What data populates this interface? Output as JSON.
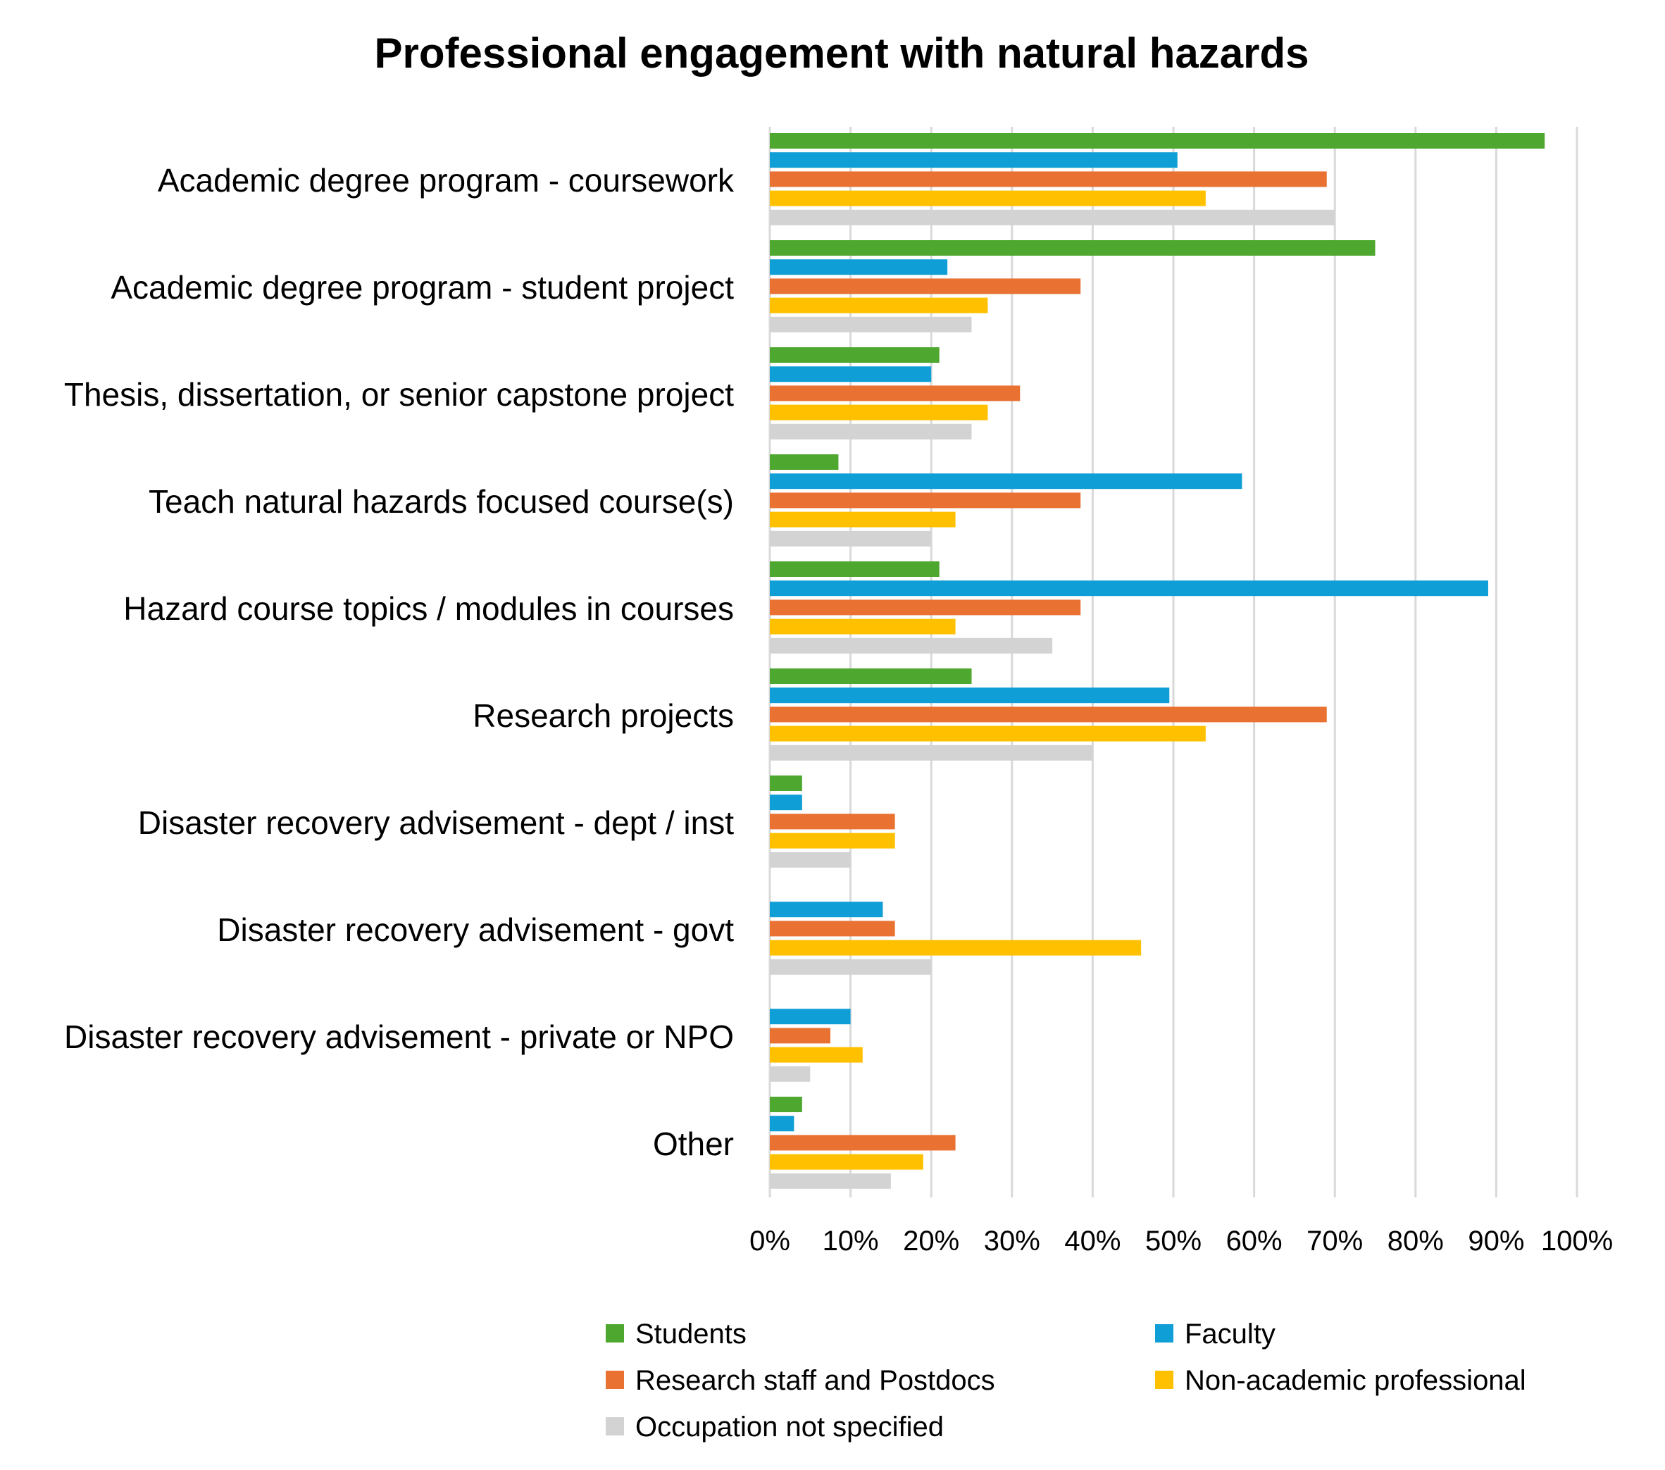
{
  "chart_data": {
    "type": "bar",
    "orientation": "horizontal",
    "title": "Professional engagement with natural hazards",
    "categories": [
      "Academic degree program - coursework",
      "Academic degree program - student project",
      "Thesis, dissertation, or senior capstone project",
      "Teach natural hazards focused course(s)",
      "Hazard course topics / modules in courses",
      "Research projects",
      "Disaster recovery advisement - dept / inst",
      "Disaster recovery advisement - govt",
      "Disaster recovery advisement - private or NPO",
      "Other"
    ],
    "series": [
      {
        "name": "Students",
        "color": "#4ea72e",
        "values": [
          96,
          75,
          21,
          8.5,
          21,
          25,
          4,
          0,
          0,
          4
        ]
      },
      {
        "name": "Faculty",
        "color": "#0f9ed5",
        "values": [
          50.5,
          22,
          20,
          58.5,
          89,
          49.5,
          4,
          14,
          10,
          3
        ]
      },
      {
        "name": "Research staff and Postdocs",
        "color": "#e97132",
        "values": [
          69,
          38.5,
          31,
          38.5,
          38.5,
          69,
          15.5,
          15.5,
          7.5,
          23
        ]
      },
      {
        "name": "Non-academic professional",
        "color": "#ffc000",
        "values": [
          54,
          27,
          27,
          23,
          23,
          54,
          15.5,
          46,
          11.5,
          19
        ]
      },
      {
        "name": "Occupation not specified",
        "color": "#d3d3d3",
        "values": [
          70,
          25,
          25,
          20,
          35,
          40,
          10,
          20,
          5,
          15
        ]
      }
    ],
    "xlim": [
      0,
      100
    ],
    "xticks": [
      "0%",
      "10%",
      "20%",
      "30%",
      "40%",
      "50%",
      "60%",
      "70%",
      "80%",
      "90%",
      "100%"
    ],
    "grid": "vertical",
    "legend_position": "bottom"
  }
}
